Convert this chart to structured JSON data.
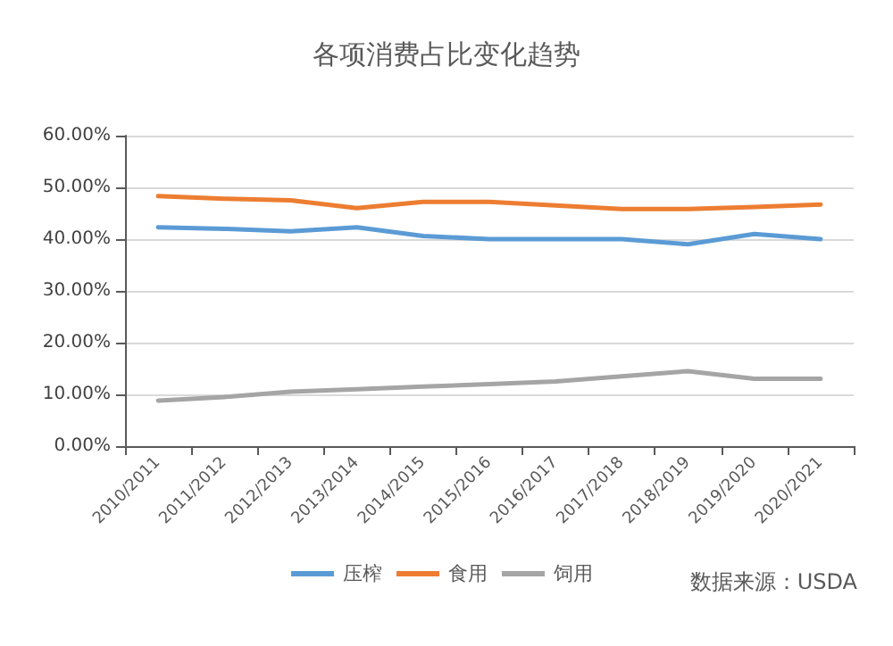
{
  "chart_data": {
    "type": "line",
    "title": "各项消费占比变化趋势",
    "categories": [
      "2010/2011",
      "2011/2012",
      "2012/2013",
      "2013/2014",
      "2014/2015",
      "2015/2016",
      "2016/2017",
      "2017/2018",
      "2018/2019",
      "2019/2020",
      "2020/2021"
    ],
    "series": [
      {
        "name": "压榨",
        "color": "#5b9bd5",
        "values": [
          42.3,
          42,
          41.5,
          42.3,
          40.6,
          40,
          40,
          40,
          39,
          41,
          40
        ]
      },
      {
        "name": "食用",
        "color": "#ed7d31",
        "values": [
          48.3,
          47.8,
          47.5,
          46,
          47.2,
          47.2,
          46.5,
          45.8,
          45.8,
          46.2,
          46.7
        ]
      },
      {
        "name": "饲用",
        "color": "#a5a5a5",
        "values": [
          8.8,
          9.5,
          10.5,
          11,
          11.5,
          12,
          12.5,
          13.5,
          14.5,
          13,
          13
        ]
      }
    ],
    "ylim": [
      0,
      60
    ],
    "yticks": [
      {
        "value": 0,
        "label": "0.00%"
      },
      {
        "value": 10,
        "label": "10.00%"
      },
      {
        "value": 20,
        "label": "20.00%"
      },
      {
        "value": 30,
        "label": "30.00%"
      },
      {
        "value": 40,
        "label": "40.00%"
      },
      {
        "value": 50,
        "label": "50.00%"
      },
      {
        "value": 60,
        "label": "60.00%"
      }
    ],
    "grid": "y",
    "legend": "bottom",
    "marker": "none",
    "line_style": "solid",
    "annotations": [
      "数据来源：USDA"
    ]
  }
}
